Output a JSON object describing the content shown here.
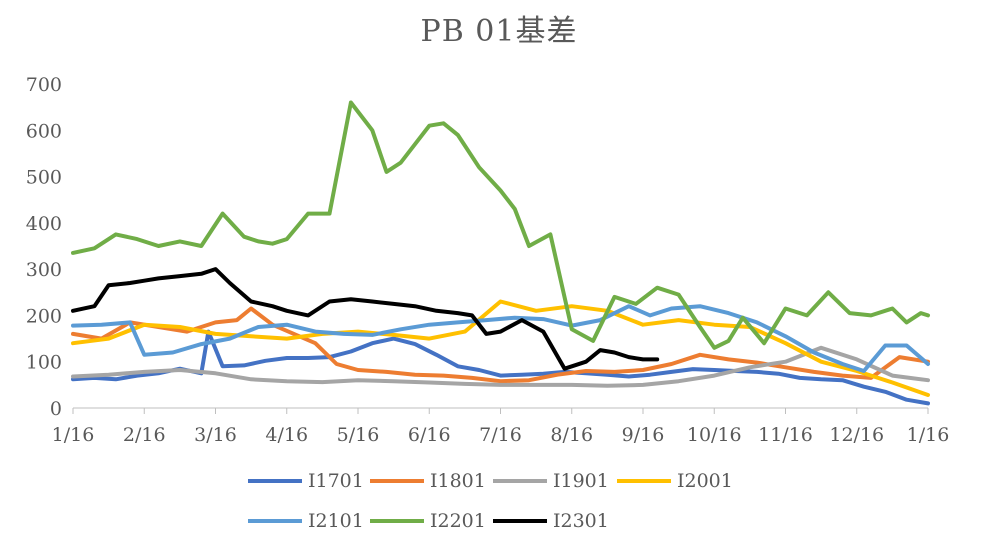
{
  "chart_data": {
    "type": "line",
    "title": "PB 01基差",
    "xlabel": "",
    "ylabel": "",
    "ylim": [
      0,
      700
    ],
    "y_ticks": [
      "0",
      "100",
      "200",
      "300",
      "400",
      "500",
      "600",
      "700"
    ],
    "x_ticks": [
      "1/16",
      "2/16",
      "3/16",
      "4/16",
      "5/16",
      "6/16",
      "7/16",
      "8/16",
      "9/16",
      "10/16",
      "11/16",
      "12/16",
      "1/16"
    ],
    "grid": false,
    "legend_position": "bottom",
    "series": [
      {
        "name": "I1701",
        "color": "#4472C4",
        "x": [
          0,
          0.3,
          0.6,
          0.9,
          1.2,
          1.5,
          1.8,
          1.9,
          2.1,
          2.4,
          2.7,
          3.0,
          3.3,
          3.6,
          3.9,
          4.2,
          4.5,
          4.8,
          5.1,
          5.4,
          5.7,
          6.0,
          6.3,
          6.6,
          6.9,
          7.2,
          7.5,
          7.8,
          8.1,
          8.4,
          8.7,
          9.0,
          9.3,
          9.6,
          9.9,
          10.2,
          10.5,
          10.8,
          11.1,
          11.4,
          11.7,
          12.0
        ],
        "y": [
          62,
          65,
          62,
          70,
          75,
          85,
          75,
          165,
          90,
          92,
          102,
          108,
          108,
          110,
          122,
          140,
          150,
          138,
          115,
          90,
          82,
          70,
          72,
          74,
          78,
          75,
          72,
          68,
          72,
          78,
          84,
          82,
          80,
          78,
          74,
          65,
          62,
          60,
          46,
          35,
          18,
          10
        ]
      },
      {
        "name": "I1801",
        "color": "#ED7D31",
        "x": [
          0,
          0.4,
          0.8,
          1.2,
          1.6,
          2.0,
          2.3,
          2.5,
          2.8,
          3.1,
          3.4,
          3.7,
          4.0,
          4.4,
          4.8,
          5.2,
          5.6,
          6.0,
          6.4,
          6.8,
          7.2,
          7.6,
          8.0,
          8.4,
          8.8,
          9.2,
          9.6,
          10.0,
          10.4,
          10.8,
          11.2,
          11.6,
          12.0
        ],
        "y": [
          160,
          150,
          185,
          175,
          165,
          185,
          190,
          215,
          180,
          160,
          140,
          95,
          82,
          78,
          72,
          70,
          65,
          58,
          60,
          72,
          80,
          78,
          82,
          95,
          115,
          105,
          98,
          88,
          78,
          70,
          65,
          110,
          100
        ]
      },
      {
        "name": "I1901",
        "color": "#A5A5A5",
        "x": [
          0,
          0.5,
          1.0,
          1.5,
          2.0,
          2.5,
          3.0,
          3.5,
          4.0,
          4.5,
          5.0,
          5.5,
          6.0,
          6.5,
          7.0,
          7.5,
          8.0,
          8.5,
          9.0,
          9.5,
          10.0,
          10.5,
          11.0,
          11.5,
          12.0
        ],
        "y": [
          68,
          72,
          78,
          82,
          75,
          62,
          58,
          56,
          60,
          58,
          55,
          52,
          50,
          50,
          50,
          48,
          50,
          58,
          70,
          88,
          100,
          130,
          105,
          70,
          60
        ]
      },
      {
        "name": "I2001",
        "color": "#FFC000",
        "x": [
          0,
          0.5,
          1.0,
          1.5,
          2.0,
          2.5,
          3.0,
          3.5,
          4.0,
          4.5,
          5.0,
          5.5,
          6.0,
          6.5,
          7.0,
          7.5,
          8.0,
          8.5,
          9.0,
          9.5,
          10.0,
          10.5,
          11.0,
          11.5,
          12.0
        ],
        "y": [
          140,
          150,
          180,
          175,
          160,
          155,
          150,
          160,
          165,
          158,
          150,
          165,
          230,
          210,
          220,
          210,
          180,
          190,
          180,
          175,
          140,
          100,
          80,
          55,
          28
        ]
      },
      {
        "name": "I2101",
        "color": "#5B9BD5",
        "x": [
          0,
          0.4,
          0.8,
          1.0,
          1.4,
          1.8,
          2.2,
          2.6,
          3.0,
          3.4,
          3.8,
          4.2,
          4.6,
          5.0,
          5.4,
          5.8,
          6.2,
          6.6,
          7.0,
          7.4,
          7.8,
          8.1,
          8.4,
          8.8,
          9.2,
          9.6,
          10.0,
          10.4,
          10.8,
          11.1,
          11.4,
          11.7,
          12.0
        ],
        "y": [
          178,
          180,
          185,
          115,
          120,
          138,
          150,
          175,
          180,
          165,
          160,
          158,
          170,
          180,
          185,
          190,
          195,
          192,
          178,
          190,
          220,
          200,
          215,
          220,
          205,
          185,
          155,
          120,
          95,
          80,
          135,
          135,
          95
        ]
      },
      {
        "name": "I2201",
        "color": "#70AD47",
        "x": [
          0,
          0.3,
          0.6,
          0.9,
          1.2,
          1.5,
          1.8,
          2.1,
          2.4,
          2.6,
          2.8,
          3.0,
          3.3,
          3.6,
          3.9,
          4.2,
          4.4,
          4.6,
          4.8,
          5.0,
          5.2,
          5.4,
          5.7,
          6.0,
          6.2,
          6.4,
          6.7,
          7.0,
          7.3,
          7.6,
          7.9,
          8.2,
          8.5,
          8.8,
          9.0,
          9.2,
          9.4,
          9.7,
          10.0,
          10.3,
          10.6,
          10.9,
          11.2,
          11.5,
          11.7,
          11.9,
          12.0
        ],
        "y": [
          335,
          345,
          375,
          365,
          350,
          360,
          350,
          420,
          370,
          360,
          355,
          365,
          420,
          420,
          660,
          600,
          510,
          530,
          570,
          610,
          615,
          590,
          520,
          470,
          430,
          350,
          375,
          170,
          145,
          240,
          225,
          260,
          245,
          175,
          130,
          145,
          195,
          140,
          215,
          200,
          250,
          205,
          200,
          215,
          185,
          205,
          200
        ]
      },
      {
        "name": "I2301",
        "color": "#000000",
        "x": [
          0,
          0.3,
          0.5,
          0.8,
          1.0,
          1.2,
          1.5,
          1.8,
          2.0,
          2.2,
          2.5,
          2.8,
          3.0,
          3.3,
          3.6,
          3.9,
          4.2,
          4.5,
          4.8,
          5.1,
          5.4,
          5.6,
          5.8,
          6.0,
          6.3,
          6.6,
          6.9,
          7.2,
          7.4,
          7.6,
          7.8,
          8.0,
          8.2
        ],
        "y": [
          210,
          220,
          265,
          270,
          275,
          280,
          285,
          290,
          300,
          270,
          230,
          220,
          210,
          200,
          230,
          235,
          230,
          225,
          220,
          210,
          205,
          200,
          160,
          165,
          190,
          165,
          85,
          100,
          125,
          120,
          110,
          105,
          105
        ]
      }
    ]
  }
}
